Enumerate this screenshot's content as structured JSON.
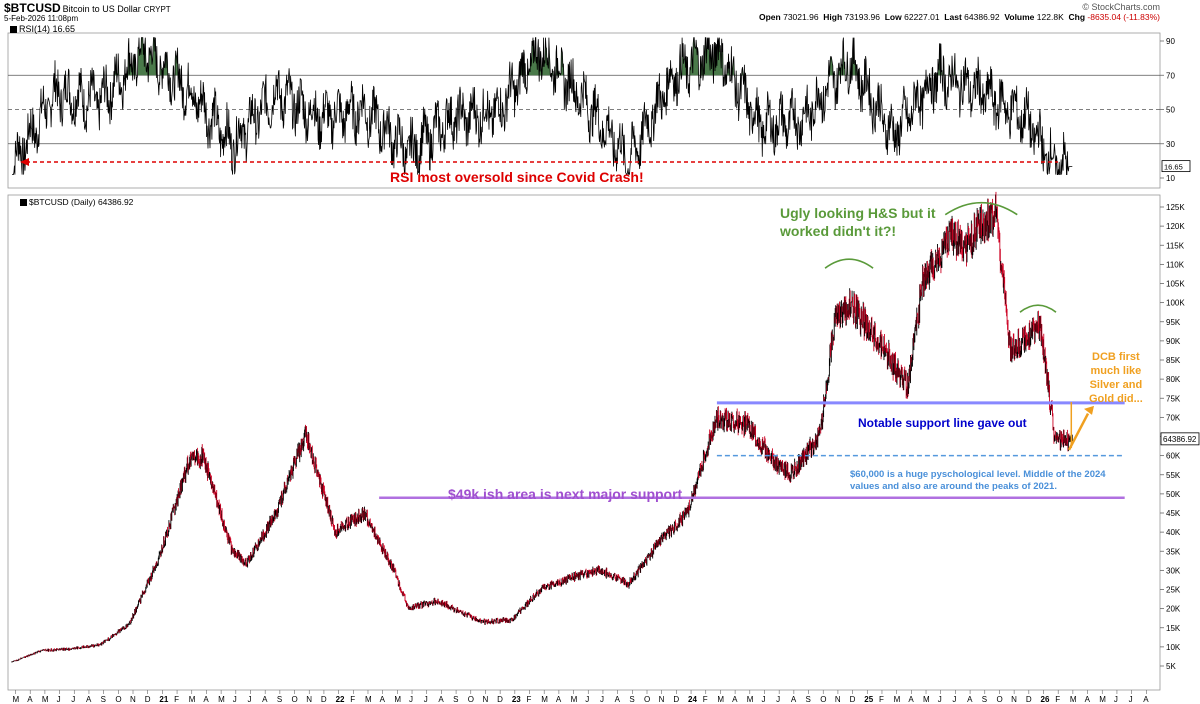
{
  "header": {
    "symbol": "$BTCUSD",
    "name": "Bitcoin to US Dollar",
    "exchange": "CRYPT",
    "date": "5-Feb-2026 11:08pm",
    "logo": "© StockCharts.com",
    "open_label": "Open",
    "open": "73021.96",
    "high_label": "High",
    "high": "73193.96",
    "low_label": "Low",
    "low": "62227.01",
    "last_label": "Last",
    "last": "64386.92",
    "volume_label": "Volume",
    "volume": "122.8K",
    "chg_label": "Chg",
    "chg": "-8635.04 (-11.83%)"
  },
  "rsi_panel": {
    "label": "RSI(14) 16.65",
    "current": "16.65",
    "ticks": [
      "90",
      "70",
      "50",
      "30",
      "10"
    ],
    "annotation": "RSI most oversold since Covid Crash!"
  },
  "main_panel": {
    "label": "$BTCUSD (Daily) 64386.92",
    "last_price_box": "64386.92"
  },
  "annotations": {
    "hs_line1": "Ugly looking H&S but it",
    "hs_line2": "worked didn't it?!",
    "support_gave_out": "Notable support line gave out",
    "dcb_line1": "DCB first",
    "dcb_line2": "much like",
    "dcb_line3": "Silver and",
    "dcb_line4": "Gold did...",
    "psych_line1": "$60,000 is a huge pyschological level. Middle of the 2024",
    "psych_line2": "values and also are around the peaks of 2021.",
    "support_49k": "$49k ish area is next major support"
  },
  "colors": {
    "support_line": "#8888ff",
    "support_line_dark": "#0000cc",
    "support_49k": "#b070e0",
    "psych_line": "#5599dd",
    "hs_green": "#5a9a3a",
    "dcb_orange": "#f0a020",
    "rsi_arrow_red": "#dd0000",
    "candle_up": "#000000",
    "candle_down": "#cc0022",
    "rsi_fill": "#4a7a4a"
  },
  "chart_data": [
    {
      "type": "line",
      "title": "RSI(14)",
      "ylim": [
        0,
        100
      ],
      "yticks": [
        10,
        30,
        50,
        70,
        90
      ],
      "reference_lines": [
        30,
        50,
        70
      ],
      "x": [
        "2020-03",
        "2020-06",
        "2020-09",
        "2020-12",
        "2021-03",
        "2021-06",
        "2021-09",
        "2021-12",
        "2022-03",
        "2022-06",
        "2022-09",
        "2022-12",
        "2023-03",
        "2023-06",
        "2023-09",
        "2023-12",
        "2024-03",
        "2024-06",
        "2024-09",
        "2024-12",
        "2025-03",
        "2025-06",
        "2025-09",
        "2025-12",
        "2026-02"
      ],
      "series": [
        {
          "values": [
            17,
            60,
            55,
            85,
            62,
            30,
            60,
            45,
            50,
            25,
            45,
            48,
            85,
            55,
            20,
            70,
            85,
            40,
            45,
            80,
            35,
            70,
            60,
            45,
            17
          ]
        }
      ]
    },
    {
      "type": "line",
      "title": "$BTCUSD (Daily)",
      "ylim": [
        0,
        130000
      ],
      "yticks": [
        5000,
        10000,
        15000,
        20000,
        25000,
        30000,
        35000,
        40000,
        45000,
        50000,
        55000,
        60000,
        65000,
        70000,
        75000,
        80000,
        85000,
        90000,
        95000,
        100000,
        105000,
        110000,
        115000,
        120000,
        125000
      ],
      "xticks": [
        "M",
        "A",
        "M",
        "J",
        "J",
        "A",
        "S",
        "O",
        "N",
        "D",
        "21",
        "F",
        "M",
        "A",
        "M",
        "J",
        "J",
        "A",
        "S",
        "O",
        "N",
        "D",
        "22",
        "F",
        "M",
        "A",
        "M",
        "J",
        "J",
        "A",
        "S",
        "O",
        "N",
        "D",
        "23",
        "F",
        "M",
        "A",
        "M",
        "J",
        "J",
        "A",
        "S",
        "O",
        "N",
        "D",
        "24",
        "F",
        "M",
        "A",
        "M",
        "J",
        "J",
        "A",
        "S",
        "O",
        "N",
        "D",
        "25",
        "F",
        "M",
        "A",
        "M",
        "J",
        "J",
        "A",
        "S",
        "O",
        "N",
        "D",
        "26",
        "F",
        "M",
        "A",
        "M",
        "J",
        "J",
        "A"
      ],
      "x": [
        "2020-03",
        "2020-05",
        "2020-07",
        "2020-09",
        "2020-11",
        "2021-01",
        "2021-03",
        "2021-04",
        "2021-06",
        "2021-07",
        "2021-09",
        "2021-11",
        "2022-01",
        "2022-03",
        "2022-05",
        "2022-06",
        "2022-08",
        "2022-11",
        "2023-01",
        "2023-03",
        "2023-05",
        "2023-07",
        "2023-09",
        "2023-11",
        "2024-01",
        "2024-03",
        "2024-05",
        "2024-07",
        "2024-08",
        "2024-10",
        "2024-11",
        "2024-12",
        "2025-02",
        "2025-04",
        "2025-05",
        "2025-07",
        "2025-08",
        "2025-10",
        "2025-11",
        "2026-01",
        "2026-02"
      ],
      "series": [
        {
          "name": "BTCUSD",
          "values": [
            6000,
            9000,
            9500,
            10500,
            16000,
            33000,
            58000,
            60000,
            35000,
            32000,
            45000,
            66000,
            40000,
            45000,
            30000,
            20000,
            22000,
            16500,
            17000,
            25000,
            28000,
            30000,
            26500,
            37000,
            45000,
            70000,
            68000,
            58000,
            55000,
            65000,
            95000,
            100000,
            90000,
            78000,
            105000,
            118000,
            115000,
            124000,
            87000,
            95000,
            64386.92
          ]
        }
      ],
      "horizontal_lines": [
        {
          "value": 73800,
          "label": "Notable support line gave out"
        },
        {
          "value": 60000,
          "style": "dashed",
          "label": "$60,000 is a huge pyschological level"
        },
        {
          "value": 49000,
          "label": "$49k ish area is next major support"
        }
      ]
    }
  ]
}
